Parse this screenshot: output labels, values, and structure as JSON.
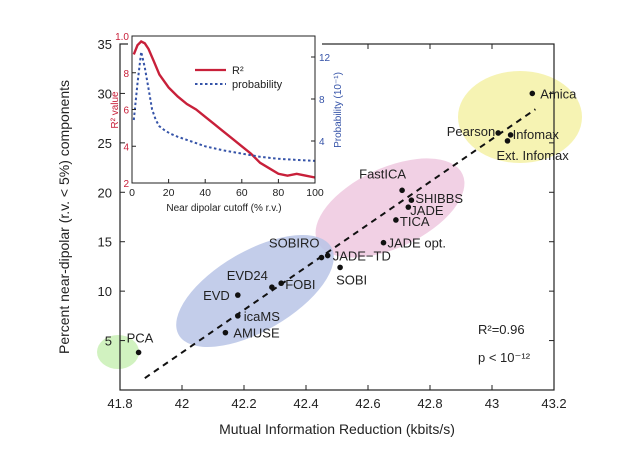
{
  "chart_data": [
    {
      "type": "scatter",
      "xlabel": "Mutual Information Reduction (kbits/s)",
      "ylabel": "Percent near-dipolar (r.v. < 5%) components",
      "xlim": [
        41.8,
        43.2
      ],
      "ylim": [
        0,
        35
      ],
      "xticks": [
        "41.8",
        "42",
        "42.2",
        "42.4",
        "42.6",
        "42.8",
        "43",
        "43.2"
      ],
      "yticks": [
        "5",
        "10",
        "15",
        "20",
        "25",
        "30",
        "35"
      ],
      "grid": false,
      "points": [
        {
          "label": "PCA",
          "x": 41.86,
          "y": 3.8
        },
        {
          "label": "AMUSE",
          "x": 42.14,
          "y": 5.8
        },
        {
          "label": "icaMS",
          "x": 42.18,
          "y": 7.5
        },
        {
          "label": "EVD",
          "x": 42.18,
          "y": 9.6
        },
        {
          "label": "EVD24",
          "x": 42.29,
          "y": 10.4
        },
        {
          "label": "FOBI",
          "x": 42.32,
          "y": 10.8
        },
        {
          "label": "SOBIRO",
          "x": 42.45,
          "y": 13.4
        },
        {
          "label": "JADE−TD",
          "x": 42.47,
          "y": 13.6
        },
        {
          "label": "SOBI",
          "x": 42.51,
          "y": 12.4
        },
        {
          "label": "JADE opt.",
          "x": 42.65,
          "y": 14.9
        },
        {
          "label": "TICA",
          "x": 42.69,
          "y": 17.2
        },
        {
          "label": "JADE",
          "x": 42.73,
          "y": 18.5
        },
        {
          "label": "SHIBBS",
          "x": 42.74,
          "y": 19.2
        },
        {
          "label": "FastICA",
          "x": 42.71,
          "y": 20.2
        },
        {
          "label": "Pearson",
          "x": 43.02,
          "y": 26.0
        },
        {
          "label": "Infomax",
          "x": 43.06,
          "y": 25.8
        },
        {
          "label": "Ext. Infomax",
          "x": 43.05,
          "y": 25.2
        },
        {
          "label": "Amica",
          "x": 43.13,
          "y": 30.0
        }
      ],
      "fit_line": {
        "x": [
          41.88,
          43.14
        ],
        "y": [
          1.2,
          28.4
        ]
      },
      "annotations": [
        "R²=0.96",
        "p < 10⁻¹²"
      ],
      "clusters": [
        {
          "color": "#f4f1a6",
          "members": [
            "Pearson",
            "Infomax",
            "Ext. Infomax",
            "Amica"
          ]
        },
        {
          "color": "#efc8df",
          "members": [
            "FastICA",
            "SHIBBS",
            "JADE",
            "TICA",
            "JADE opt."
          ]
        },
        {
          "color": "#b8c4e6",
          "members": [
            "SOBIRO",
            "JADE−TD",
            "SOBI",
            "EVD24",
            "FOBI",
            "EVD",
            "icaMS",
            "AMUSE"
          ]
        },
        {
          "color": "#c9f0b5",
          "members": [
            "PCA"
          ]
        }
      ]
    },
    {
      "type": "line",
      "inset": true,
      "xlabel": "Near dipolar cutoff (% r.v.)",
      "ylabel": "R² value",
      "y2label": "Probability (10⁻¹)",
      "xlim": [
        0,
        100
      ],
      "ylim": [
        0.2,
        1.0
      ],
      "y2lim": [
        0,
        14
      ],
      "xticks": [
        "0",
        "20",
        "40",
        "60",
        "80",
        "100"
      ],
      "yticks": [
        "2",
        "4",
        "6",
        "8",
        "1.0"
      ],
      "y2ticks": [
        "4",
        "8",
        "12"
      ],
      "legend_position": "top-right",
      "series": [
        {
          "name": "R²",
          "color": "#c8203a",
          "style": "solid",
          "axis": "left",
          "x": [
            1,
            3,
            5,
            7,
            9,
            12,
            15,
            20,
            25,
            30,
            35,
            40,
            45,
            50,
            55,
            60,
            65,
            70,
            75,
            80,
            85,
            90,
            95,
            100
          ],
          "y": [
            0.9,
            0.95,
            0.97,
            0.96,
            0.93,
            0.86,
            0.79,
            0.72,
            0.67,
            0.63,
            0.6,
            0.56,
            0.52,
            0.48,
            0.44,
            0.4,
            0.36,
            0.31,
            0.28,
            0.25,
            0.24,
            0.25,
            0.24,
            0.23
          ]
        },
        {
          "name": "probability",
          "color": "#3553a8",
          "style": "dotted",
          "axis": "right",
          "x": [
            1,
            3,
            5,
            7,
            9,
            11,
            13,
            15,
            18,
            21,
            25,
            30,
            40,
            50,
            60,
            70,
            80,
            90,
            100
          ],
          "y": [
            6.0,
            9.5,
            12.5,
            11.0,
            9.0,
            7.0,
            6.0,
            5.4,
            5.0,
            4.7,
            4.4,
            4.1,
            3.5,
            3.1,
            2.8,
            2.5,
            2.3,
            2.2,
            2.1
          ]
        }
      ]
    }
  ]
}
